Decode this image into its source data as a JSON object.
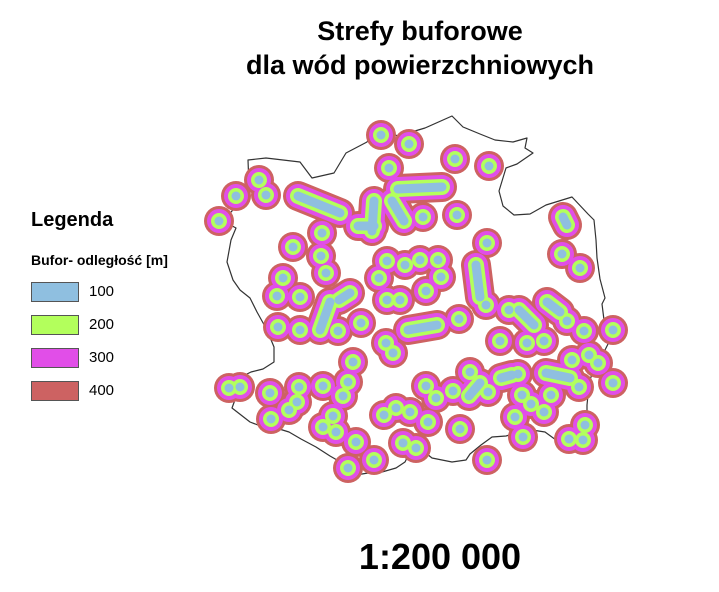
{
  "map": {
    "title_line1": "Strefy buforowe",
    "title_line2": "dla wód powierzchniowych",
    "scale": "1:200 000"
  },
  "legend": {
    "title": "Legenda",
    "subtitle": "Bufor- odległość [m]",
    "items": [
      {
        "label": "100",
        "color": "#8fbfe0"
      },
      {
        "label": "200",
        "color": "#b3ff5c"
      },
      {
        "label": "300",
        "color": "#e14ee8"
      },
      {
        "label": "400",
        "color": "#cd6262"
      }
    ]
  }
}
